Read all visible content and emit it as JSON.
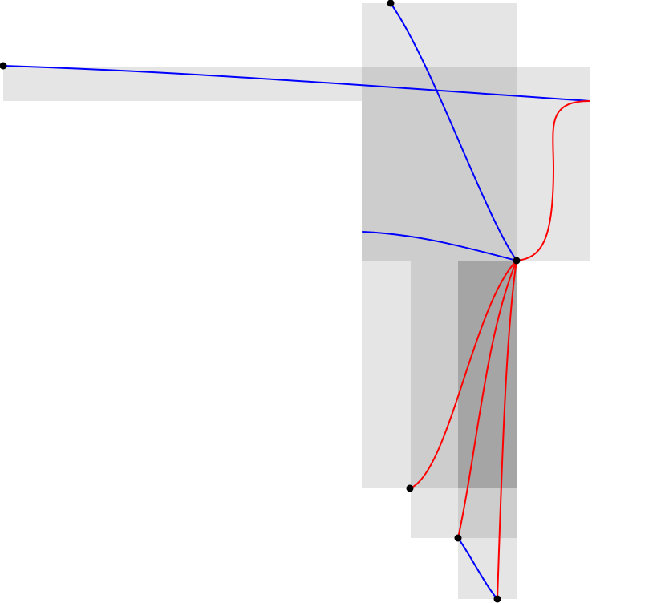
{
  "diagram": {
    "background": "#ffffff",
    "rect_fill": "#000000",
    "rect_opacity": 0.1,
    "colors": {
      "blue": "#0000ff",
      "red": "#ff0000",
      "node": "#000000"
    },
    "region_count": 7,
    "edge_count": 8,
    "node_count": 6
  }
}
